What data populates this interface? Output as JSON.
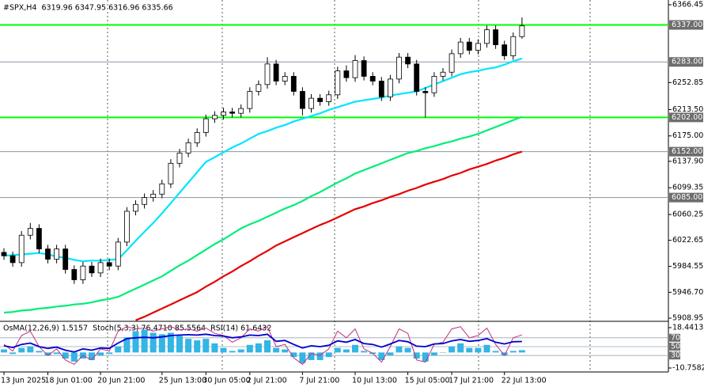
{
  "chart_data": [
    {
      "type": "candlestick",
      "title": "#SPX,H4  6319.96 6347.95 6316.96 6335.66",
      "categories": [
        "13 Jun 2025",
        null,
        null,
        null,
        null,
        "18 Jun 01:00",
        null,
        null,
        null,
        null,
        null,
        "20 Jun 21:00",
        null,
        null,
        null,
        null,
        null,
        null,
        "25 Jun 13:00",
        null,
        null,
        null,
        null,
        "30 Jun 05:00",
        null,
        null,
        null,
        null,
        "2 Jul 21:00",
        null,
        null,
        null,
        null,
        null,
        "7 Jul 21:00",
        null,
        null,
        null,
        null,
        null,
        "10 Jul 13:00",
        null,
        null,
        null,
        null,
        null,
        "15 Jul 05:00",
        null,
        null,
        null,
        null,
        "17 Jul 21:00",
        null,
        null,
        null,
        null,
        null,
        "22 Jul 13:00",
        null,
        null
      ],
      "open": [
        6005,
        6000,
        5990,
        6030,
        6040,
        6010,
        5995,
        6010,
        5980,
        5965,
        5985,
        5975,
        5990,
        5985,
        6020,
        6065,
        6075,
        6085,
        6090,
        6105,
        6135,
        6150,
        6165,
        6180,
        6200,
        6205,
        6210,
        6208,
        6215,
        6240,
        6250,
        6280,
        6255,
        6262,
        6240,
        6215,
        6230,
        6225,
        6235,
        6270,
        6260,
        6285,
        6262,
        6255,
        6232,
        6258,
        6290,
        6280,
        6240,
        6238,
        6262,
        6268,
        6295,
        6312,
        6300,
        6310,
        6330,
        6308,
        6292,
        6319.96
      ],
      "high": [
        6011,
        6006,
        6036,
        6048,
        6046,
        6016,
        6016,
        6016,
        5986,
        5991,
        5991,
        5996,
        5996,
        6026,
        6071,
        6081,
        6091,
        6096,
        6111,
        6141,
        6156,
        6171,
        6186,
        6206,
        6211,
        6216,
        6216,
        6221,
        6246,
        6256,
        6290,
        6286,
        6268,
        6268,
        6246,
        6236,
        6236,
        6241,
        6276,
        6278,
        6293,
        6291,
        6268,
        6261,
        6264,
        6296,
        6296,
        6286,
        6246,
        6268,
        6274,
        6301,
        6318,
        6318,
        6316,
        6336,
        6336,
        6314,
        6326,
        6347.95
      ],
      "low": [
        5994,
        5984,
        5984,
        6024,
        6004,
        5989,
        5989,
        5974,
        5959,
        5959,
        5969,
        5969,
        5979,
        5979,
        6014,
        6059,
        6069,
        6079,
        6084,
        6099,
        6129,
        6144,
        6159,
        6174,
        6194,
        6199,
        6202,
        6202,
        6209,
        6234,
        6244,
        6249,
        6249,
        6234,
        6205,
        6209,
        6219,
        6219,
        6229,
        6254,
        6254,
        6256,
        6249,
        6226,
        6226,
        6252,
        6274,
        6234,
        6202,
        6232,
        6256,
        6262,
        6289,
        6294,
        6294,
        6304,
        6302,
        6286,
        6286,
        6316.96
      ],
      "close": [
        6000,
        5990,
        6030,
        6040,
        6010,
        5995,
        6010,
        5980,
        5965,
        5985,
        5975,
        5990,
        5985,
        6020,
        6065,
        6075,
        6085,
        6090,
        6105,
        6135,
        6150,
        6165,
        6180,
        6200,
        6205,
        6210,
        6208,
        6215,
        6240,
        6250,
        6280,
        6255,
        6262,
        6240,
        6215,
        6230,
        6225,
        6235,
        6270,
        6260,
        6285,
        6262,
        6255,
        6232,
        6258,
        6290,
        6280,
        6240,
        6238,
        6262,
        6268,
        6295,
        6312,
        6300,
        6310,
        6330,
        6308,
        6292,
        6320,
        6335.66
      ],
      "series": [
        {
          "color": "#00e5ff",
          "values": [
            6000,
            6001,
            6002,
            6003,
            6004,
            6002,
            5999,
            5997,
            5994,
            5992,
            5993,
            5993,
            5994,
            5995,
            6008,
            6022,
            6035,
            6048,
            6062,
            6077,
            6092,
            6107,
            6122,
            6137,
            6144,
            6151,
            6158,
            6164,
            6171,
            6178,
            6182,
            6187,
            6191,
            6196,
            6200,
            6204,
            6208,
            6213,
            6217,
            6221,
            6225,
            6227,
            6229,
            6231,
            6234,
            6236,
            6238,
            6240,
            6245,
            6250,
            6255,
            6260,
            6265,
            6268,
            6270,
            6273,
            6275,
            6279,
            6284,
            6288
          ]
        },
        {
          "color": "#00ee76",
          "values": [
            5917,
            5918,
            5920,
            5921,
            5923,
            5924,
            5926,
            5927,
            5929,
            5930,
            5932,
            5935,
            5937,
            5940,
            5946,
            5952,
            5958,
            5964,
            5970,
            5978,
            5986,
            5993,
            6001,
            6009,
            6017,
            6024,
            6032,
            6040,
            6046,
            6051,
            6057,
            6063,
            6069,
            6074,
            6080,
            6087,
            6093,
            6100,
            6107,
            6113,
            6120,
            6125,
            6130,
            6135,
            6140,
            6145,
            6150,
            6153,
            6157,
            6160,
            6164,
            6167,
            6171,
            6174,
            6178,
            6183,
            6188,
            6193,
            6198,
            6203
          ]
        },
        {
          "color": "#e60000",
          "values": [
            null,
            null,
            null,
            null,
            null,
            null,
            null,
            null,
            null,
            null,
            null,
            null,
            null,
            null,
            null,
            5906,
            5911,
            5917,
            5923,
            5929,
            5935,
            5941,
            5947,
            5955,
            5962,
            5970,
            5977,
            5985,
            5992,
            6000,
            6007,
            6015,
            6021,
            6027,
            6033,
            6039,
            6045,
            6050,
            6056,
            6062,
            6068,
            6072,
            6077,
            6081,
            6086,
            6090,
            6095,
            6099,
            6104,
            6108,
            6112,
            6117,
            6121,
            6126,
            6130,
            6134,
            6139,
            6143,
            6148,
            6152
          ]
        }
      ],
      "levels": [
        {
          "value": 6337,
          "label": "6337.00",
          "color": "#00ff00"
        },
        {
          "value": 6283,
          "label": "6283.00",
          "color": "#8a96a3"
        },
        {
          "value": 6202,
          "label": "6202.00",
          "color": "#00ff00"
        },
        {
          "value": 6152,
          "label": "6152.00",
          "color": "#8a96a3"
        },
        {
          "value": 6085,
          "label": "6085.00",
          "color": "#8a96a3"
        }
      ],
      "ylim": [
        5905.5,
        6373.4
      ],
      "yticks": [
        6366.45,
        6252.85,
        {
          "value": 6213.5,
          "label": "6213.50"
        },
        {
          "value": 6175,
          "label": "6175.00"
        },
        {
          "value": 6137.9,
          "label": "6137.90"
        },
        6099.35,
        6060.25,
        6022.65,
        5984.55,
        {
          "value": 5946.7,
          "label": "5946.70"
        },
        5908.95
      ]
    },
    {
      "type": "oscillator",
      "title": "OsMA(12,26,9) 1.5157  Stoch(5,3,3) 76.4710 85.5564  RSI(14) 61.6432",
      "series": [
        {
          "type": "bar",
          "color": "#33b5e5",
          "values": [
            2,
            -1,
            3,
            4,
            1,
            -2,
            -1,
            -4,
            -6,
            -4,
            -5,
            -2,
            -1,
            4,
            10,
            14,
            15,
            13,
            12,
            13,
            11,
            9,
            8,
            9,
            6,
            3,
            1,
            2,
            5,
            6,
            8,
            3,
            2,
            -3,
            -7,
            -5,
            -5,
            -3,
            3,
            2,
            5,
            1,
            -1,
            -5,
            -2,
            4,
            3,
            -4,
            -6,
            -2,
            0,
            4,
            6,
            3,
            3,
            5,
            1,
            -2,
            1,
            1.5157
          ]
        },
        {
          "type": "line",
          "axis": "y2",
          "color": "#c0307f",
          "values": [
            55,
            40,
            75,
            85,
            50,
            30,
            45,
            20,
            10,
            30,
            20,
            45,
            40,
            85,
            95,
            90,
            92,
            85,
            90,
            95,
            88,
            90,
            85,
            92,
            80,
            75,
            60,
            70,
            90,
            85,
            95,
            50,
            55,
            25,
            10,
            35,
            30,
            45,
            85,
            70,
            90,
            45,
            35,
            15,
            50,
            90,
            80,
            20,
            15,
            55,
            60,
            90,
            95,
            70,
            75,
            92,
            55,
            30,
            70,
            76.471
          ]
        },
        {
          "type": "line",
          "axis": "y2",
          "color": "#0000cd",
          "values": [
            52,
            48,
            55,
            58,
            50,
            46,
            49,
            42,
            38,
            45,
            42,
            47,
            46,
            58,
            68,
            70,
            71,
            70,
            72,
            75,
            76,
            77,
            76,
            78,
            75,
            74,
            70,
            72,
            76,
            75,
            78,
            62,
            64,
            55,
            47,
            52,
            50,
            53,
            63,
            60,
            66,
            57,
            55,
            49,
            56,
            64,
            61,
            51,
            50,
            56,
            57,
            63,
            66,
            62,
            64,
            68,
            60,
            56,
            61,
            61.6432
          ]
        }
      ],
      "ylim": [
        -10.7582,
        18.4413
      ],
      "yticks": [
        -10.7582,
        18.4413
      ],
      "y2lim": [
        0,
        100
      ],
      "y2ticks": [
        30,
        50,
        70
      ]
    }
  ]
}
